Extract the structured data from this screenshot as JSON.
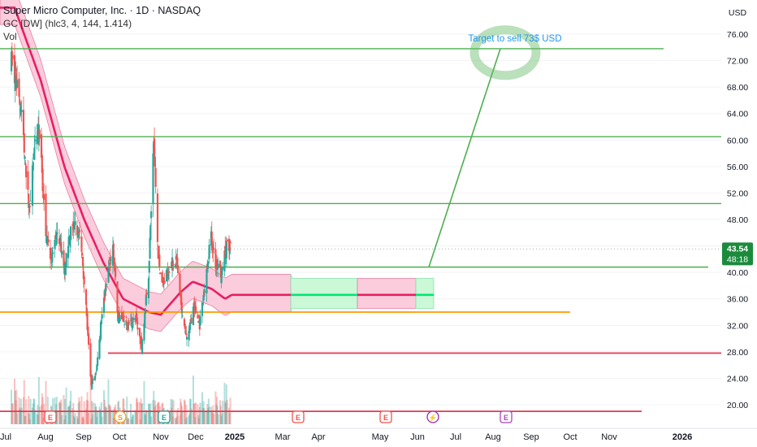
{
  "header": {
    "title": "Super Micro Computer, Inc. · 1D · NASDAQ",
    "indicator": "GC [DW] (hlc3, 4, 144, 1.414)",
    "volume_label": "Vol"
  },
  "price_axis": {
    "currency": "USD",
    "ticks": [
      "76.00",
      "72.00",
      "68.00",
      "64.00",
      "60.00",
      "56.00",
      "52.00",
      "48.00",
      "44.00",
      "40.00",
      "36.00",
      "32.00",
      "28.00",
      "24.00",
      "20.00"
    ],
    "last_price": "43.54",
    "countdown": "48:18"
  },
  "time_axis": {
    "labels": [
      "Jul",
      "Aug",
      "Sep",
      "Oct",
      "Nov",
      "Dec",
      "2025",
      "Mar",
      "Apr",
      "May",
      "Jun",
      "Jul",
      "Aug",
      "Sep",
      "Oct",
      "Nov",
      "2026"
    ]
  },
  "annotation": {
    "text": "Target to sell 73$ USD"
  },
  "events": [
    {
      "letter": "E",
      "kind": "earnings",
      "color": "#ef5350"
    },
    {
      "letter": "S",
      "kind": "split",
      "color": "#f0a020"
    },
    {
      "letter": "E",
      "kind": "earnings",
      "color": "#26a69a"
    },
    {
      "letter": "E",
      "kind": "earnings",
      "color": "#ef5350"
    },
    {
      "letter": "E",
      "kind": "earnings",
      "color": "#ef5350"
    },
    {
      "letter": "E",
      "kind": "earnings",
      "color": "#ef5350"
    },
    {
      "letter": "⚡",
      "kind": "dividend-or-news",
      "color": "#9c27b0"
    },
    {
      "letter": "E",
      "kind": "earnings-upcoming",
      "color": "#ab47bc"
    }
  ],
  "colors": {
    "up": "#26a69a",
    "down": "#ef5350",
    "levels": "#4caf50",
    "orange_level": "#ff9800",
    "support": "#e53950",
    "band_down": "#f8bbd0",
    "band_up": "#b9f6ca",
    "center_down": "#e91e63",
    "center_up": "#00e676"
  },
  "chart_data": {
    "type": "candlestick",
    "price_unit": "USD",
    "ylim": [
      18,
      79
    ],
    "horizontal_levels": [
      {
        "price": 73.8,
        "color": "green"
      },
      {
        "price": 60.5,
        "color": "green"
      },
      {
        "price": 50.4,
        "color": "green"
      },
      {
        "price": 40.8,
        "color": "green"
      },
      {
        "price": 34.0,
        "color": "orange"
      },
      {
        "price": 27.8,
        "color": "red"
      },
      {
        "price": 19.0,
        "color": "red"
      }
    ],
    "projection": {
      "from_price": 40.8,
      "to_price": 73.8,
      "label": "Target to sell 73$ USD"
    },
    "center_line": [
      {
        "date": "2024-07-15",
        "price": 80.0
      },
      {
        "date": "2024-08-25",
        "price": 69.0
      },
      {
        "date": "2024-10-01",
        "price": 56.0
      },
      {
        "date": "2024-11-01",
        "price": 48.0
      },
      {
        "date": "2024-12-01",
        "price": 41.5
      },
      {
        "date": "2025-01-01",
        "price": 36.0
      },
      {
        "date": "2025-02-10",
        "price": 34.0
      },
      {
        "date": "2025-03-01",
        "price": 33.6
      },
      {
        "date": "2025-04-01",
        "price": 37.0
      },
      {
        "date": "2025-04-20",
        "price": 38.6
      },
      {
        "date": "2025-05-20",
        "price": 37.5
      },
      {
        "date": "2025-06-10",
        "price": 36.0
      },
      {
        "date": "2025-06-20",
        "price": 36.6
      }
    ],
    "last_close": 43.54
  }
}
